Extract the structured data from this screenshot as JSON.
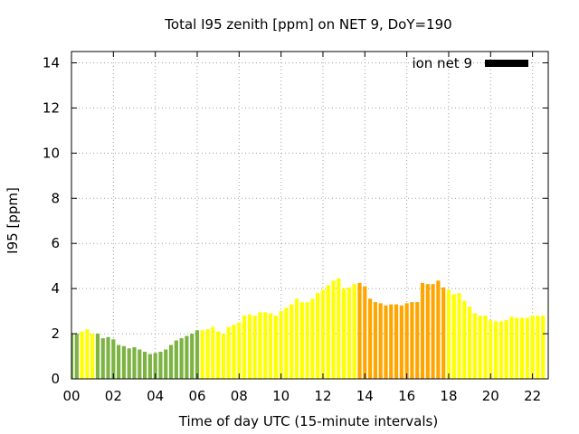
{
  "chart_data": {
    "type": "bar",
    "title": "Total I95 zenith [ppm] on NET 9, DoY=190",
    "xlabel": "Time of day UTC (15-minute intervals)",
    "ylabel": "I95 [ppm]",
    "xlim": [
      0,
      22.75
    ],
    "ylim": [
      0,
      14.5
    ],
    "x_ticks": [
      "00",
      "02",
      "04",
      "06",
      "08",
      "10",
      "12",
      "14",
      "16",
      "18",
      "20",
      "22"
    ],
    "y_ticks": [
      "0",
      "2",
      "4",
      "6",
      "8",
      "10",
      "12",
      "14"
    ],
    "grid": true,
    "legend": {
      "position": "top-right",
      "label": "ion net 9",
      "color": "#000000"
    },
    "category_colors": {
      "low": "#7cb342",
      "medium": "#ffff00",
      "high": "#ffa500"
    },
    "series": [
      {
        "name": "ion net 9",
        "interval_hours": 0.25,
        "values": [
          2.0,
          2.0,
          2.1,
          2.2,
          2.0,
          2.0,
          1.8,
          1.85,
          1.75,
          1.5,
          1.45,
          1.35,
          1.4,
          1.3,
          1.2,
          1.1,
          1.15,
          1.2,
          1.3,
          1.5,
          1.7,
          1.8,
          1.9,
          2.0,
          2.15,
          2.15,
          2.2,
          2.3,
          2.1,
          2.0,
          2.3,
          2.4,
          2.5,
          2.8,
          2.85,
          2.8,
          2.95,
          2.95,
          2.9,
          2.8,
          3.0,
          3.15,
          3.3,
          3.55,
          3.4,
          3.4,
          3.55,
          3.8,
          3.95,
          4.15,
          4.35,
          4.45,
          4.0,
          4.05,
          4.2,
          4.25,
          4.1,
          3.55,
          3.4,
          3.35,
          3.25,
          3.3,
          3.3,
          3.25,
          3.35,
          3.4,
          3.4,
          4.25,
          4.2,
          4.2,
          4.35,
          4.05,
          3.95,
          3.75,
          3.8,
          3.45,
          3.2,
          2.9,
          2.8,
          2.8,
          2.6,
          2.55,
          2.55,
          2.6,
          2.75,
          2.7,
          2.7,
          2.7,
          2.8,
          2.8,
          2.8
        ],
        "color_classes": [
          "low",
          "low",
          "medium",
          "medium",
          "medium",
          "low",
          "low",
          "low",
          "low",
          "low",
          "low",
          "low",
          "low",
          "low",
          "low",
          "low",
          "low",
          "low",
          "low",
          "low",
          "low",
          "low",
          "low",
          "low",
          "low",
          "medium",
          "medium",
          "medium",
          "medium",
          "medium",
          "medium",
          "medium",
          "medium",
          "medium",
          "medium",
          "medium",
          "medium",
          "medium",
          "medium",
          "medium",
          "medium",
          "medium",
          "medium",
          "medium",
          "medium",
          "medium",
          "medium",
          "medium",
          "medium",
          "medium",
          "medium",
          "medium",
          "medium",
          "medium",
          "medium",
          "high",
          "high",
          "high",
          "high",
          "high",
          "high",
          "high",
          "high",
          "high",
          "high",
          "high",
          "high",
          "high",
          "high",
          "high",
          "high",
          "high",
          "medium",
          "medium",
          "medium",
          "medium",
          "medium",
          "medium",
          "medium",
          "medium",
          "medium",
          "medium",
          "medium",
          "medium",
          "medium",
          "medium",
          "medium",
          "medium",
          "medium",
          "medium",
          "medium",
          "medium",
          "medium",
          "medium",
          "medium",
          "medium",
          "medium",
          "medium",
          "medium"
        ]
      }
    ]
  }
}
